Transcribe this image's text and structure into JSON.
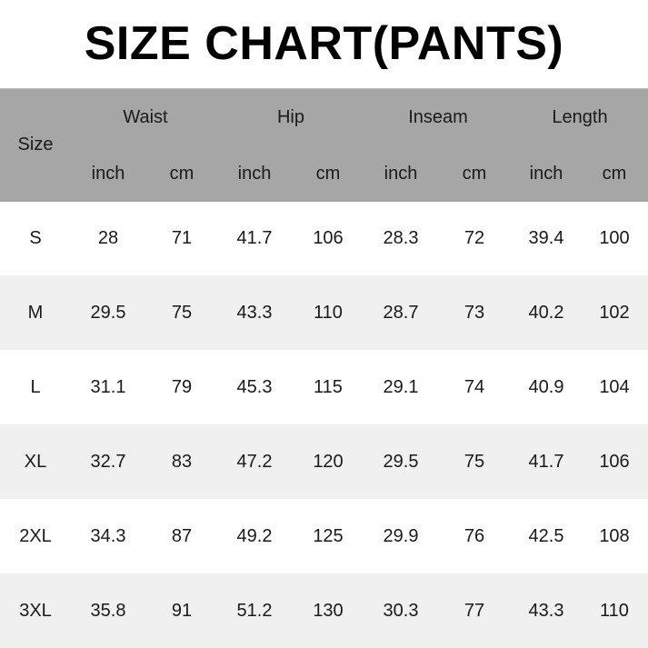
{
  "title": "SIZE CHART(PANTS)",
  "header": {
    "size": "Size",
    "groups": [
      "Waist",
      "Hip",
      "Inseam",
      "Length"
    ],
    "units": [
      "inch",
      "cm",
      "inch",
      "cm",
      "inch",
      "cm",
      "inch",
      "cm"
    ]
  },
  "rows": [
    {
      "size": "S",
      "values": [
        "28",
        "71",
        "41.7",
        "106",
        "28.3",
        "72",
        "39.4",
        "100"
      ]
    },
    {
      "size": "M",
      "values": [
        "29.5",
        "75",
        "43.3",
        "110",
        "28.7",
        "73",
        "40.2",
        "102"
      ]
    },
    {
      "size": "L",
      "values": [
        "31.1",
        "79",
        "45.3",
        "115",
        "29.1",
        "74",
        "40.9",
        "104"
      ]
    },
    {
      "size": "XL",
      "values": [
        "32.7",
        "83",
        "47.2",
        "120",
        "29.5",
        "75",
        "41.7",
        "106"
      ]
    },
    {
      "size": "2XL",
      "values": [
        "34.3",
        "87",
        "49.2",
        "125",
        "29.9",
        "76",
        "42.5",
        "108"
      ]
    },
    {
      "size": "3XL",
      "values": [
        "35.8",
        "91",
        "51.2",
        "130",
        "30.3",
        "77",
        "43.3",
        "110"
      ]
    }
  ],
  "colors": {
    "header_bg": "#a6a6a6",
    "alt_row_bg": "#f0f0f0"
  }
}
